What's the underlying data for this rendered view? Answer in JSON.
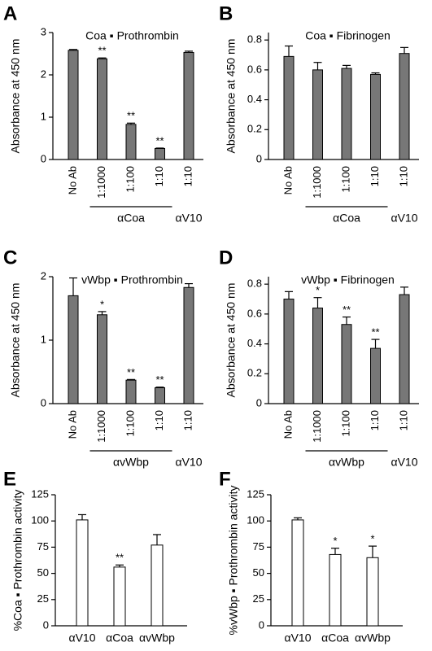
{
  "chart_data": [
    {
      "type": "bar",
      "panel": "A",
      "title": "Coa ▪ Prothrombin",
      "ylabel": "Absorbance at 450 nm",
      "categories": [
        "No Ab",
        "1:1000",
        "1:100",
        "1:10",
        "1:10"
      ],
      "values": [
        2.58,
        2.38,
        0.83,
        0.26,
        2.53
      ],
      "errors": [
        0.02,
        0.02,
        0.03,
        0.01,
        0.03
      ],
      "significance": [
        null,
        "**",
        "**",
        "**",
        null
      ],
      "groups": [
        {
          "label": "αCoa",
          "from": 1,
          "to": 3
        },
        {
          "label": "αV10",
          "from": 4,
          "to": 4
        }
      ],
      "color": "#777777",
      "ylim": [
        0,
        3
      ],
      "yticks": [
        0,
        1,
        2,
        3
      ]
    },
    {
      "type": "bar",
      "panel": "B",
      "title": "Coa ▪ Fibrinogen",
      "ylabel": "Absorbance at 450 nm",
      "categories": [
        "No Ab",
        "1:1000",
        "1:100",
        "1:10",
        "1:10"
      ],
      "values": [
        0.69,
        0.6,
        0.61,
        0.57,
        0.71
      ],
      "errors": [
        0.07,
        0.05,
        0.02,
        0.01,
        0.04
      ],
      "significance": [
        null,
        null,
        null,
        null,
        null
      ],
      "groups": [
        {
          "label": "αCoa",
          "from": 1,
          "to": 3
        },
        {
          "label": "αV10",
          "from": 4,
          "to": 4
        }
      ],
      "color": "#777777",
      "ylim": [
        0,
        0.85
      ],
      "yticks": [
        0,
        0.2,
        0.4,
        0.6,
        0.8
      ]
    },
    {
      "type": "bar",
      "panel": "C",
      "title": "vWbp ▪ Prothrombin",
      "ylabel": "Absorbance at 450 nm",
      "categories": [
        "No Ab",
        "1:1000",
        "1:100",
        "1:10",
        "1:10"
      ],
      "values": [
        1.7,
        1.4,
        0.37,
        0.25,
        1.83
      ],
      "errors": [
        0.28,
        0.05,
        0.01,
        0.01,
        0.06
      ],
      "significance": [
        null,
        "*",
        "**",
        "**",
        null
      ],
      "groups": [
        {
          "label": "αvWbp",
          "from": 1,
          "to": 3
        },
        {
          "label": "αV10",
          "from": 4,
          "to": 4
        }
      ],
      "color": "#777777",
      "ylim": [
        0,
        2
      ],
      "yticks": [
        0,
        1,
        2
      ]
    },
    {
      "type": "bar",
      "panel": "D",
      "title": "vWbp ▪ Fibrinogen",
      "ylabel": "Absorbance at 450 nm",
      "categories": [
        "No Ab",
        "1:1000",
        "1:100",
        "1:10",
        "1:10"
      ],
      "values": [
        0.7,
        0.64,
        0.53,
        0.37,
        0.73
      ],
      "errors": [
        0.05,
        0.07,
        0.05,
        0.06,
        0.05
      ],
      "significance": [
        null,
        "*",
        "**",
        "**",
        null
      ],
      "groups": [
        {
          "label": "αvWbp",
          "from": 1,
          "to": 3
        },
        {
          "label": "αV10",
          "from": 4,
          "to": 4
        }
      ],
      "color": "#777777",
      "ylim": [
        0,
        0.85
      ],
      "yticks": [
        0,
        0.2,
        0.4,
        0.6,
        0.8
      ]
    },
    {
      "type": "bar",
      "panel": "E",
      "ylabel": "%Coa ▪ Prothrombin  activity",
      "categories": [
        "αV10",
        "αCoa",
        "αvWbp"
      ],
      "values": [
        101,
        56,
        77
      ],
      "errors": [
        5,
        2,
        10
      ],
      "significance": [
        null,
        "**",
        null
      ],
      "color": "#ffffff",
      "ylim": [
        0,
        125
      ],
      "yticks": [
        0,
        25,
        50,
        75,
        100,
        125
      ]
    },
    {
      "type": "bar",
      "panel": "F",
      "ylabel": "%vWbp ▪ Prothrombin  activity",
      "categories": [
        "αV10",
        "αCoa",
        "αvWbp"
      ],
      "values": [
        101,
        68,
        65
      ],
      "errors": [
        2,
        6,
        11
      ],
      "significance": [
        null,
        "*",
        "*"
      ],
      "color": "#ffffff",
      "ylim": [
        0,
        125
      ],
      "yticks": [
        0,
        25,
        50,
        75,
        100,
        125
      ]
    }
  ]
}
